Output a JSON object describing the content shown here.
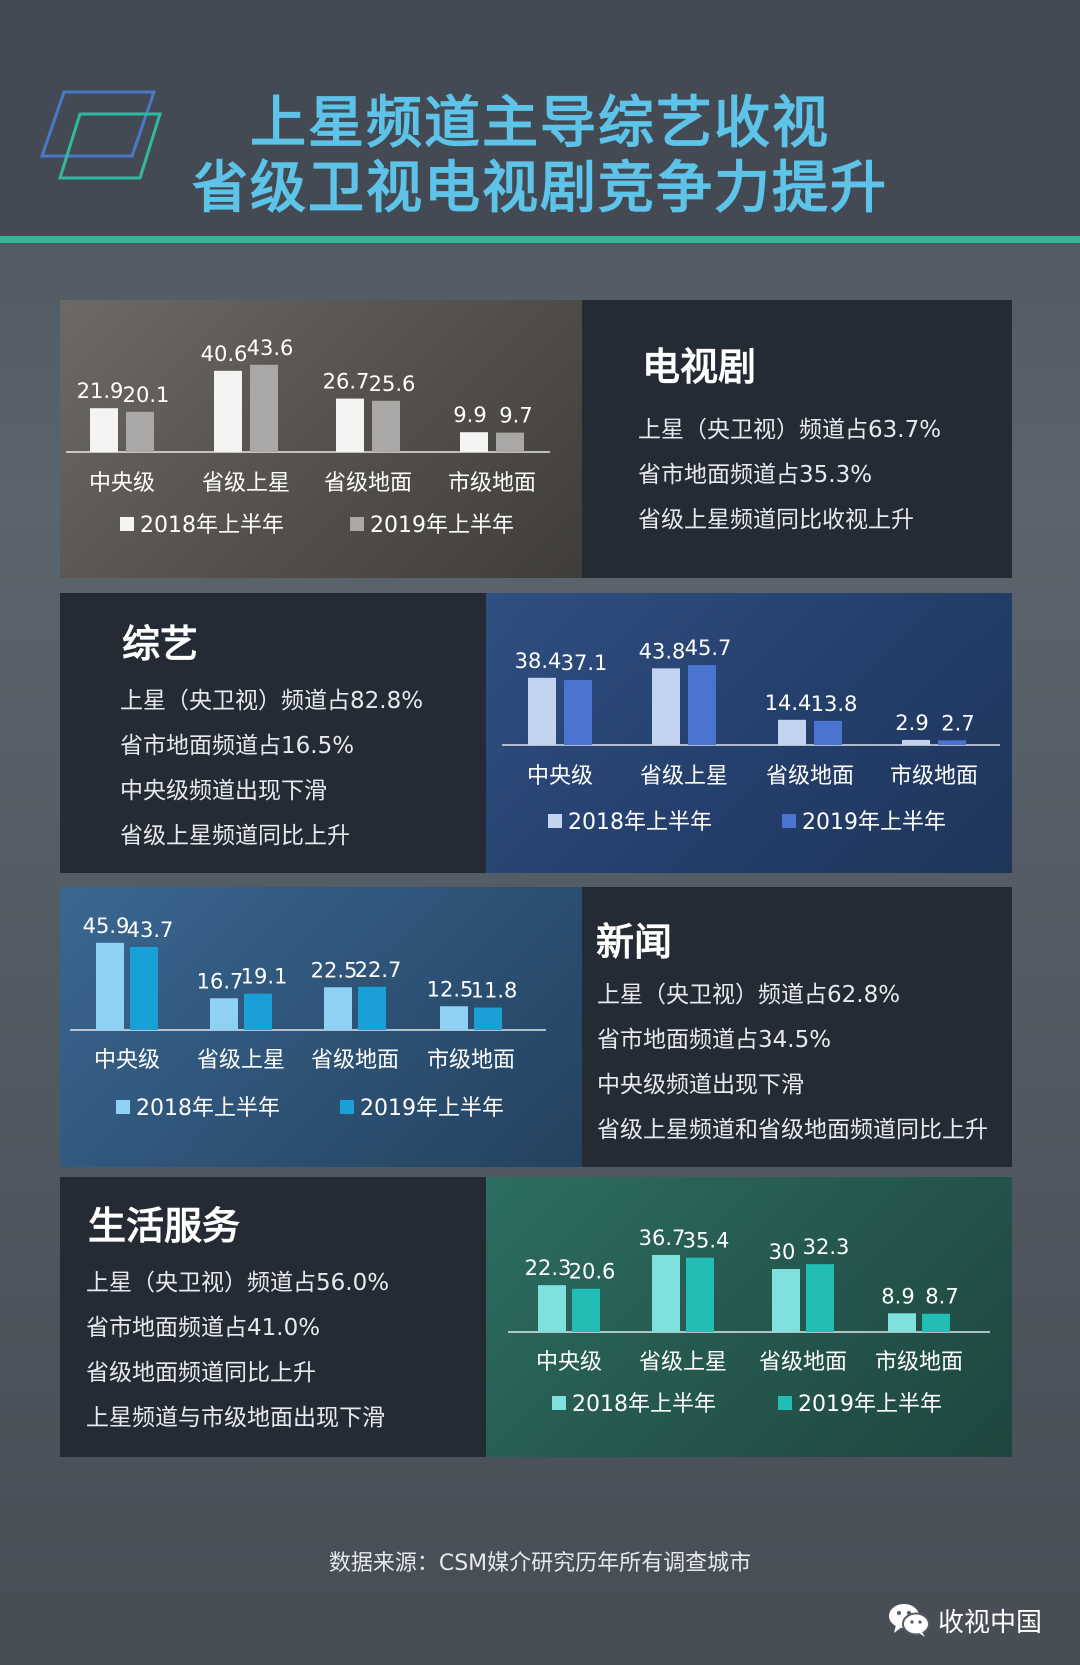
{
  "header": {
    "title_line1": "上星频道主导综艺收视",
    "title_line2": "省级卫视电视剧竞争力提升"
  },
  "panels": {
    "tv": {
      "title": "电视剧",
      "lines": [
        "上星（央卫视）频道占63.7%",
        "省市地面频道占35.3%",
        "省级上星频道同比收视上升"
      ]
    },
    "variety": {
      "title": "综艺",
      "lines": [
        "上星（央卫视）频道占82.8%",
        "省市地面频道占16.5%",
        "中央级频道出现下滑",
        "省级上星频道同比上升"
      ]
    },
    "news": {
      "title": "新闻",
      "lines": [
        "上星（央卫视）频道占62.8%",
        "省市地面频道占34.5%",
        "中央级频道出现下滑",
        "省级上星频道和省级地面频道同比上升"
      ]
    },
    "life": {
      "title": "生活服务",
      "lines": [
        "上星（央卫视）频道占56.0%",
        "省市地面频道占41.0%",
        "省级地面频道同比上升",
        "上星频道与市级地面出现下滑"
      ]
    }
  },
  "chart_data": [
    {
      "id": "tv",
      "type": "bar",
      "categories": [
        "中央级",
        "省级上星",
        "省级地面",
        "市级地面"
      ],
      "series": [
        {
          "name": "2018年上半年",
          "values": [
            21.9,
            40.6,
            26.7,
            9.9
          ]
        },
        {
          "name": "2019年上半年",
          "values": [
            20.1,
            43.6,
            25.6,
            9.7
          ]
        }
      ],
      "value_labels": [
        [
          "21.9",
          "40.6",
          "26.7",
          "9.9"
        ],
        [
          "20.1",
          "43.6",
          "25.6",
          "9.7"
        ]
      ],
      "colors": [
        "#f4f4f2",
        "#a9a8a6"
      ],
      "ylim": [
        0,
        50
      ],
      "legend": "bottom"
    },
    {
      "id": "variety",
      "type": "bar",
      "categories": [
        "中央级",
        "省级上星",
        "省级地面",
        "市级地面"
      ],
      "series": [
        {
          "name": "2018年上半年",
          "values": [
            38.4,
            43.8,
            14.4,
            2.9
          ]
        },
        {
          "name": "2019年上半年",
          "values": [
            37.1,
            45.7,
            13.8,
            2.7
          ]
        }
      ],
      "value_labels": [
        [
          "38.4",
          "43.8",
          "14.4",
          "2.9"
        ],
        [
          "37.1",
          "45.7",
          "13.8",
          "2.7"
        ]
      ],
      "colors": [
        "#c4d3f0",
        "#4a74d0"
      ],
      "ylim": [
        0,
        50
      ],
      "legend": "bottom"
    },
    {
      "id": "news",
      "type": "bar",
      "categories": [
        "中央级",
        "省级上星",
        "省级地面",
        "市级地面"
      ],
      "series": [
        {
          "name": "2018年上半年",
          "values": [
            45.9,
            16.7,
            22.5,
            12.5
          ]
        },
        {
          "name": "2019年上半年",
          "values": [
            43.7,
            19.1,
            22.7,
            11.8
          ]
        }
      ],
      "value_labels": [
        [
          "45.9",
          "16.7",
          "22.5",
          "12.5"
        ],
        [
          "43.7",
          "19.1",
          "22.7",
          "11.8"
        ]
      ],
      "colors": [
        "#8fd1f2",
        "#1b9fd7"
      ],
      "ylim": [
        0,
        50
      ],
      "legend": "bottom"
    },
    {
      "id": "life",
      "type": "bar",
      "categories": [
        "中央级",
        "省级上星",
        "省级地面",
        "市级地面"
      ],
      "series": [
        {
          "name": "2018年上半年",
          "values": [
            22.3,
            36.7,
            30,
            8.9
          ]
        },
        {
          "name": "2019年上半年",
          "values": [
            20.6,
            35.4,
            32.3,
            8.7
          ]
        }
      ],
      "value_labels": [
        [
          "22.3",
          "36.7",
          "30",
          "8.9"
        ],
        [
          "20.6",
          "35.4",
          "32.3",
          "8.7"
        ]
      ],
      "colors": [
        "#7fe0dd",
        "#22bdb5"
      ],
      "ylim": [
        0,
        50
      ],
      "legend": "bottom"
    }
  ],
  "footer": {
    "source": "数据来源：CSM媒介研究历年所有调查城市",
    "brand": "收视中国",
    "brand_icon": "wechat-icon"
  }
}
